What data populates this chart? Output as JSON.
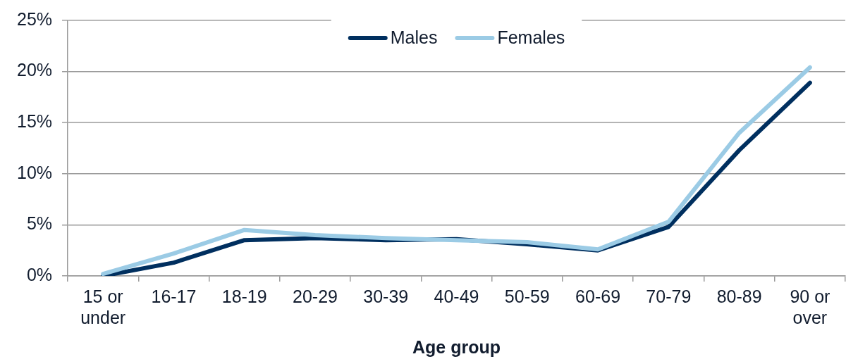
{
  "chart_data": {
    "type": "line",
    "xlabel": "Age group",
    "categories": [
      "15 or under",
      "16-17",
      "18-19",
      "20-29",
      "30-39",
      "40-49",
      "50-59",
      "60-69",
      "70-79",
      "80-89",
      "90 or over"
    ],
    "series": [
      {
        "name": "Males",
        "color": "#002f5f",
        "values": [
          0.0,
          1.3,
          3.5,
          3.7,
          3.5,
          3.6,
          3.1,
          2.5,
          4.8,
          12.3,
          18.9
        ]
      },
      {
        "name": "Females",
        "color": "#9bcbe5",
        "values": [
          0.2,
          2.2,
          4.5,
          4.0,
          3.7,
          3.5,
          3.3,
          2.6,
          5.3,
          14.0,
          20.4
        ]
      }
    ],
    "ylim": [
      0,
      25
    ],
    "yticks": [
      {
        "value": 0,
        "label": "0%"
      },
      {
        "value": 5,
        "label": "5%"
      },
      {
        "value": 10,
        "label": "10%"
      },
      {
        "value": 15,
        "label": "15%"
      },
      {
        "value": 20,
        "label": "20%"
      },
      {
        "value": 25,
        "label": "25%"
      }
    ],
    "grid": "y",
    "legend": "top"
  }
}
